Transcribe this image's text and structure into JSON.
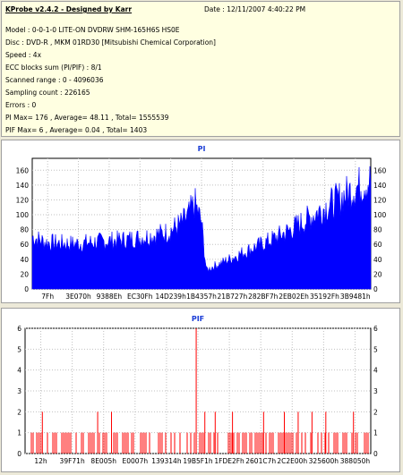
{
  "info": {
    "title": "KProbe v2.4.2 - Designed by Karr",
    "date": "Date : 12/11/2007 4:40:22 PM",
    "lines": [
      "Model : 0-0-1-0 LITE-ON DVDRW SHM-165H6S HS0E",
      "Disc : DVD-R , MKM 01RD30  [Mitsubishi Chemical Corporation]",
      "Speed : 4x",
      "ECC blocks sum (PI/PIF) : 8/1",
      "Scanned range : 0 - 4096036",
      "Sampling count : 226165",
      "Errors : 0",
      "PI Max= 176 , Average= 48.11 , Total= 1555539",
      "PIF Max= 6 , Average= 0.04 , Total= 1403"
    ]
  },
  "chart_data": [
    {
      "type": "area",
      "title": "PI",
      "color": "#0000ff",
      "ylim": [
        0,
        176
      ],
      "yticks": [
        0,
        20,
        40,
        60,
        80,
        100,
        120,
        140,
        160
      ],
      "xticks": [
        "7Fh",
        "3E070h",
        "9388Eh",
        "EC30Fh",
        "14D239h",
        "1B4357h",
        "21B727h",
        "282BF7h",
        "2EB02Eh",
        "35192Fh",
        "3B9481h"
      ],
      "profile": [
        [
          0,
          72
        ],
        [
          0.04,
          64
        ],
        [
          0.12,
          62
        ],
        [
          0.2,
          65
        ],
        [
          0.28,
          68
        ],
        [
          0.34,
          72
        ],
        [
          0.4,
          78
        ],
        [
          0.44,
          90
        ],
        [
          0.46,
          100
        ],
        [
          0.48,
          118
        ],
        [
          0.5,
          92
        ],
        [
          0.51,
          45
        ],
        [
          0.515,
          25
        ],
        [
          0.53,
          30
        ],
        [
          0.56,
          36
        ],
        [
          0.6,
          45
        ],
        [
          0.65,
          56
        ],
        [
          0.7,
          66
        ],
        [
          0.75,
          78
        ],
        [
          0.8,
          92
        ],
        [
          0.85,
          108
        ],
        [
          0.9,
          122
        ],
        [
          0.95,
          138
        ],
        [
          1.0,
          150
        ]
      ]
    },
    {
      "type": "bar",
      "title": "PIF",
      "color": "#ff0000",
      "ylim": [
        0,
        6
      ],
      "yticks": [
        0,
        1,
        2,
        3,
        4,
        5,
        6
      ],
      "xticks": [
        "12h",
        "39F71h",
        "8E005h",
        "E0007h",
        "139314h",
        "19B5F1h",
        "1FDE2Fh",
        "2601C7h",
        "2C2E00h",
        "325600h",
        "388050h"
      ],
      "spikes": [
        [
          0.05,
          2
        ],
        [
          0.21,
          2
        ],
        [
          0.25,
          2
        ],
        [
          0.495,
          6
        ],
        [
          0.52,
          2
        ],
        [
          0.55,
          2
        ],
        [
          0.6,
          2
        ],
        [
          0.69,
          2
        ],
        [
          0.75,
          2
        ],
        [
          0.79,
          2
        ],
        [
          0.83,
          2
        ],
        [
          0.87,
          2
        ],
        [
          0.95,
          2
        ]
      ]
    }
  ]
}
